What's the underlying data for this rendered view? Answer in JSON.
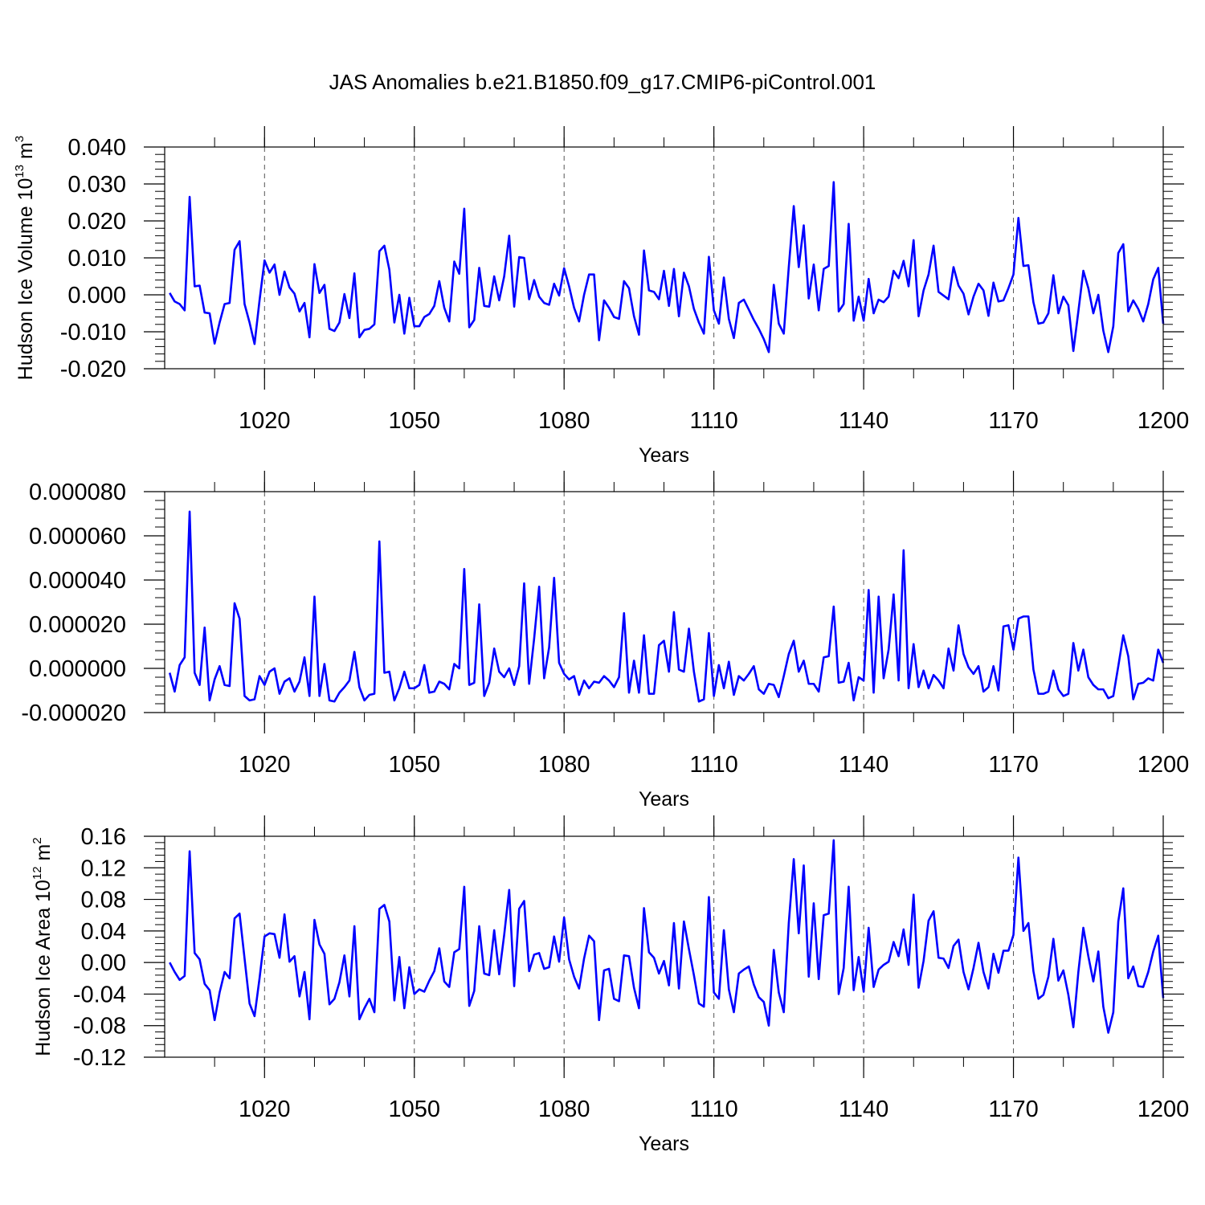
{
  "title": "JAS Anomalies b.e21.B1850.f09_g17.CMIP6-piControl.001",
  "chart_data": [
    {
      "type": "line",
      "ylabel_main": "Hudson Ice Volume 10",
      "ylabel_exp": "13",
      "ylabel_unit": " m",
      "ylabel_unit_exp": "3",
      "xlabel": "Years",
      "xlim": [
        1000,
        1200
      ],
      "ylim": [
        -0.02,
        0.04
      ],
      "x_ticks": [
        1020,
        1050,
        1080,
        1110,
        1140,
        1170,
        1200
      ],
      "x_tick_labels": [
        "1020",
        "1050",
        "1080",
        "1110",
        "1140",
        "1170",
        "1200"
      ],
      "y_ticks": [
        -0.02,
        -0.01,
        0.0,
        0.01,
        0.02,
        0.03,
        0.04
      ],
      "y_tick_labels": [
        "-0.020",
        "-0.010",
        "0.000",
        "0.010",
        "0.020",
        "0.030",
        "0.040"
      ],
      "series": [
        {
          "name": "Hudson Ice Volume anomaly",
          "color": "#0000ff",
          "start_year": 1001,
          "values": [
            0.0005,
            -0.0018,
            -0.0025,
            -0.0042,
            0.0265,
            0.0023,
            0.0025,
            -0.0048,
            -0.005,
            -0.0132,
            -0.0075,
            -0.0025,
            -0.0022,
            0.0122,
            0.0145,
            -0.0025,
            -0.0075,
            -0.0133,
            -0.0015,
            0.0093,
            0.006,
            0.0082,
            0.0,
            0.0063,
            0.002,
            0.0003,
            -0.0045,
            -0.0022,
            -0.0115,
            0.0083,
            0.0005,
            0.0027,
            -0.0092,
            -0.0098,
            -0.0075,
            0.0002,
            -0.0063,
            0.0058,
            -0.0115,
            -0.0095,
            -0.0092,
            -0.008,
            0.0118,
            0.0133,
            0.0068,
            -0.0075,
            0.0,
            -0.0105,
            -0.0008,
            -0.0085,
            -0.0085,
            -0.006,
            -0.0052,
            -0.003,
            0.0037,
            -0.0035,
            -0.0072,
            0.009,
            0.0057,
            0.0233,
            -0.0088,
            -0.0068,
            0.0073,
            -0.003,
            -0.0032,
            0.005,
            -0.0015,
            0.005,
            0.016,
            -0.0032,
            0.0102,
            0.01,
            -0.0012,
            0.004,
            -0.0005,
            -0.0022,
            -0.0027,
            0.003,
            -0.0002,
            0.0072,
            0.0023,
            -0.0035,
            -0.0072,
            0.0,
            0.0055,
            0.0055,
            -0.0123,
            -0.0015,
            -0.0035,
            -0.006,
            -0.0065,
            0.0037,
            0.0018,
            -0.0058,
            -0.0108,
            0.012,
            0.0012,
            0.0008,
            -0.0012,
            0.0065,
            -0.003,
            0.007,
            -0.0058,
            0.006,
            0.0023,
            -0.0038,
            -0.0075,
            -0.0105,
            0.0103,
            -0.0042,
            -0.0078,
            0.0047,
            -0.0065,
            -0.0117,
            -0.0022,
            -0.0013,
            -0.004,
            -0.0068,
            -0.0092,
            -0.012,
            -0.0155,
            0.0027,
            -0.0078,
            -0.0105,
            0.0075,
            0.024,
            0.0075,
            0.0188,
            -0.001,
            0.0082,
            -0.0042,
            0.007,
            0.0078,
            0.0305,
            -0.0045,
            -0.0025,
            0.0192,
            -0.007,
            -0.0005,
            -0.007,
            0.0043,
            -0.005,
            -0.0013,
            -0.002,
            -0.0005,
            0.0065,
            0.0045,
            0.0092,
            0.0023,
            0.0148,
            -0.0058,
            0.0012,
            0.0055,
            0.0133,
            0.0008,
            -0.0002,
            -0.0012,
            0.0075,
            0.0025,
            0.0003,
            -0.0053,
            -0.0005,
            0.003,
            0.0012,
            -0.0057,
            0.0033,
            -0.0018,
            -0.0015,
            0.0018,
            0.0055,
            0.0208,
            0.0078,
            0.008,
            -0.002,
            -0.0078,
            -0.0075,
            -0.005,
            0.0053,
            -0.005,
            -0.0005,
            -0.0028,
            -0.0152,
            -0.0045,
            0.0065,
            0.0018,
            -0.005,
            0.0,
            -0.0097,
            -0.0155,
            -0.0085,
            0.0113,
            0.0137,
            -0.0045,
            -0.0015,
            -0.0038,
            -0.0072,
            -0.0025,
            0.0042,
            0.0073,
            -0.0078
          ]
        }
      ]
    },
    {
      "type": "line",
      "xlabel": "Years",
      "xlim": [
        1000,
        1200
      ],
      "ylim": [
        -2e-05,
        8e-05
      ],
      "x_ticks": [
        1020,
        1050,
        1080,
        1110,
        1140,
        1170,
        1200
      ],
      "x_tick_labels": [
        "1020",
        "1050",
        "1080",
        "1110",
        "1140",
        "1170",
        "1200"
      ],
      "y_ticks": [
        -2e-05,
        0.0,
        2e-05,
        4e-05,
        6e-05,
        8e-05
      ],
      "y_tick_labels": [
        "-0.000020",
        "0.000000",
        "0.000020",
        "0.000040",
        "0.000060",
        "0.000080"
      ],
      "series": [
        {
          "name": "anomaly",
          "color": "#0000ff",
          "start_year": 1001,
          "values": [
            -2e-06,
            -1.05e-05,
            1.5e-06,
            5e-06,
            7.1e-05,
            -2e-06,
            -7.5e-06,
            1.85e-05,
            -1.45e-05,
            -5e-06,
            1e-06,
            -7.5e-06,
            -8e-06,
            2.95e-05,
            2.25e-05,
            -1.25e-05,
            -1.45e-05,
            -1.4e-05,
            -3.5e-06,
            -7.5e-06,
            -1.5e-06,
            0.0,
            -1.15e-05,
            -6e-06,
            -4.5e-06,
            -1.05e-05,
            -6e-06,
            5e-06,
            -1.25e-05,
            3.25e-05,
            -1.25e-05,
            2e-06,
            -1.45e-05,
            -1.5e-05,
            -1.1e-05,
            -8.5e-06,
            -5.5e-06,
            7.5e-06,
            -8.5e-06,
            -1.45e-05,
            -1.2e-05,
            -1.15e-05,
            5.75e-05,
            -2e-06,
            -1.5e-06,
            -1.45e-05,
            -9e-06,
            -1.5e-06,
            -9e-06,
            -9e-06,
            -7.5e-06,
            1.5e-06,
            -1.1e-05,
            -1.05e-05,
            -6e-06,
            -7e-06,
            -9.5e-06,
            2e-06,
            0.0,
            4.5e-05,
            -7.5e-06,
            -6.5e-06,
            2.9e-05,
            -1.25e-05,
            -6.5e-06,
            9e-06,
            -1.5e-06,
            -4e-06,
            0.0,
            -7.5e-06,
            1e-06,
            3.85e-05,
            -7e-06,
            1.35e-05,
            3.7e-05,
            -4.5e-06,
            9.5e-06,
            4.1e-05,
            2.5e-06,
            -2.5e-06,
            -5e-06,
            -3.5e-06,
            -1.2e-05,
            -5.5e-06,
            -9e-06,
            -6e-06,
            -6.5e-06,
            -3.5e-06,
            -5.5e-06,
            -8.5e-06,
            -4e-06,
            2.5e-05,
            -1.1e-05,
            3.5e-06,
            -1.1e-05,
            1.5e-05,
            -1.15e-05,
            -1.15e-05,
            1.05e-05,
            1.25e-05,
            -1.5e-06,
            2.55e-05,
            -5e-07,
            -1.5e-06,
            1.8e-05,
            -1.5e-06,
            -1.5e-05,
            -1.4e-05,
            1.6e-05,
            -1.25e-05,
            1.5e-06,
            -9e-06,
            3e-06,
            -1.2e-05,
            -3.5e-06,
            -5.5e-06,
            -2.5e-06,
            1e-06,
            -9.5e-06,
            -1.15e-05,
            -7e-06,
            -7.5e-06,
            -1.3e-05,
            -3.5e-06,
            6.5e-06,
            1.25e-05,
            -1.5e-06,
            3.5e-06,
            -7e-06,
            -7e-06,
            -1.05e-05,
            5e-06,
            5.5e-06,
            2.8e-05,
            -6.5e-06,
            -6e-06,
            2.5e-06,
            -1.45e-05,
            -4e-06,
            -5.5e-06,
            3.55e-05,
            -1.1e-05,
            3.25e-05,
            -4.5e-06,
            8.5e-06,
            3.35e-05,
            -5.5e-06,
            5.35e-05,
            -9e-06,
            1.1e-05,
            -8.5e-06,
            -1e-06,
            -9e-06,
            -3e-06,
            -5.5e-06,
            -9e-06,
            9e-06,
            -1e-06,
            1.95e-05,
            6.5e-06,
            5e-07,
            -2.5e-06,
            1e-06,
            -1.05e-05,
            -8.5e-06,
            1e-06,
            -1e-05,
            1.9e-05,
            1.95e-05,
            8.5e-06,
            2.25e-05,
            2.35e-05,
            2.35e-05,
            -5e-07,
            -1.15e-05,
            -1.15e-05,
            -1.05e-05,
            -1e-06,
            -9.5e-06,
            -1.25e-05,
            -1.15e-05,
            1.15e-05,
            -1e-06,
            8.5e-06,
            -4e-06,
            -7.5e-06,
            -9.5e-06,
            -9.5e-06,
            -1.35e-05,
            -1.25e-05,
            1e-06,
            1.5e-05,
            5.5e-06,
            -1.4e-05,
            -7e-06,
            -6.5e-06,
            -4.5e-06,
            -5.5e-06,
            8.5e-06,
            2.5e-06
          ]
        }
      ]
    },
    {
      "type": "line",
      "ylabel_main": "Hudson Ice Area 10",
      "ylabel_exp": "12",
      "ylabel_unit": " m",
      "ylabel_unit_exp": "2",
      "xlabel": "Years",
      "xlim": [
        1000,
        1200
      ],
      "ylim": [
        -0.12,
        0.16
      ],
      "x_ticks": [
        1020,
        1050,
        1080,
        1110,
        1140,
        1170,
        1200
      ],
      "x_tick_labels": [
        "1020",
        "1050",
        "1080",
        "1110",
        "1140",
        "1170",
        "1200"
      ],
      "y_ticks": [
        -0.12,
        -0.08,
        -0.04,
        0.0,
        0.04,
        0.08,
        0.12,
        0.16
      ],
      "y_tick_labels": [
        "-0.12",
        "-0.08",
        "-0.04",
        "0.00",
        "0.04",
        "0.08",
        "0.12",
        "0.16"
      ],
      "series": [
        {
          "name": "Hudson Ice Area anomaly",
          "color": "#0000ff",
          "start_year": 1001,
          "values": [
            0.0,
            -0.012,
            -0.022,
            -0.017,
            0.141,
            0.012,
            0.004,
            -0.027,
            -0.035,
            -0.073,
            -0.038,
            -0.012,
            -0.02,
            0.056,
            0.062,
            0.005,
            -0.052,
            -0.068,
            -0.02,
            0.033,
            0.037,
            0.036,
            0.006,
            0.061,
            0.001,
            0.008,
            -0.043,
            -0.012,
            -0.072,
            0.054,
            0.023,
            0.011,
            -0.053,
            -0.046,
            -0.025,
            0.009,
            -0.043,
            0.046,
            -0.072,
            -0.058,
            -0.046,
            -0.063,
            0.068,
            0.073,
            0.052,
            -0.048,
            0.007,
            -0.058,
            -0.006,
            -0.04,
            -0.034,
            -0.037,
            -0.023,
            -0.011,
            0.018,
            -0.024,
            -0.031,
            0.013,
            0.017,
            0.096,
            -0.055,
            -0.036,
            0.046,
            -0.014,
            -0.016,
            0.041,
            -0.015,
            0.035,
            0.092,
            -0.03,
            0.068,
            0.078,
            -0.011,
            0.01,
            0.012,
            -0.008,
            -0.006,
            0.033,
            0.001,
            0.057,
            0.004,
            -0.018,
            -0.033,
            0.005,
            0.034,
            0.027,
            -0.073,
            -0.01,
            -0.008,
            -0.046,
            -0.049,
            0.009,
            0.008,
            -0.032,
            -0.058,
            0.069,
            0.013,
            0.006,
            -0.014,
            0.002,
            -0.029,
            0.05,
            -0.033,
            0.052,
            0.017,
            -0.016,
            -0.052,
            -0.056,
            0.083,
            -0.038,
            -0.046,
            0.041,
            -0.034,
            -0.063,
            -0.014,
            -0.009,
            -0.005,
            -0.028,
            -0.044,
            -0.05,
            -0.08,
            0.016,
            -0.038,
            -0.063,
            0.05,
            0.131,
            0.037,
            0.123,
            -0.018,
            0.075,
            -0.021,
            0.06,
            0.062,
            0.155,
            -0.04,
            -0.007,
            0.096,
            -0.035,
            0.007,
            -0.037,
            0.044,
            -0.031,
            -0.009,
            -0.003,
            0.001,
            0.026,
            0.008,
            0.042,
            -0.003,
            0.086,
            -0.032,
            0.002,
            0.053,
            0.065,
            0.006,
            0.005,
            -0.007,
            0.021,
            0.029,
            -0.012,
            -0.034,
            -0.007,
            0.025,
            -0.012,
            -0.033,
            0.011,
            -0.013,
            0.015,
            0.015,
            0.035,
            0.133,
            0.04,
            0.05,
            -0.011,
            -0.046,
            -0.041,
            -0.018,
            0.03,
            -0.023,
            -0.01,
            -0.041,
            -0.082,
            -0.012,
            0.044,
            0.008,
            -0.024,
            0.014,
            -0.056,
            -0.089,
            -0.063,
            0.052,
            0.094,
            -0.02,
            -0.005,
            -0.03,
            -0.031,
            -0.012,
            0.014,
            0.034,
            -0.045
          ]
        }
      ]
    }
  ]
}
